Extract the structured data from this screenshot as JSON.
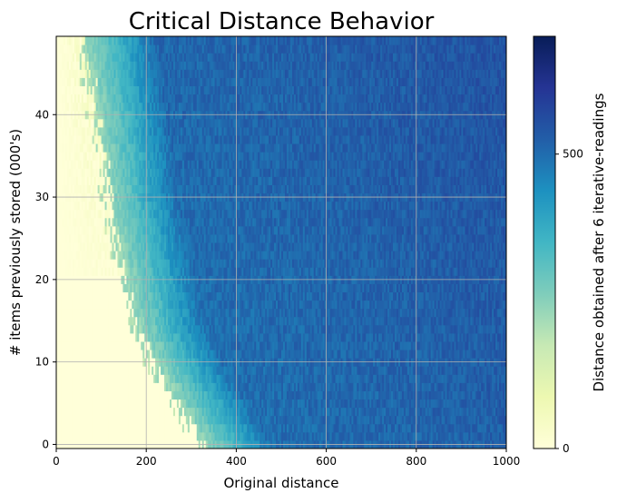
{
  "chart_data": {
    "type": "heatmap",
    "title": "Critical Distance Behavior",
    "xlabel": "Original distance",
    "ylabel": "# items previously stored (000's)",
    "xlim": [
      0,
      1000
    ],
    "ylim": [
      -0.5,
      49.5
    ],
    "x_ticks": [
      0,
      200,
      400,
      600,
      800,
      1000
    ],
    "y_ticks": [
      0,
      10,
      20,
      30,
      40
    ],
    "grid": true,
    "colormap": "YlGnBu",
    "colorbar": {
      "label": "Distance obtained after 6 iterative-readings",
      "range": [
        0,
        700
      ],
      "ticks": [
        0,
        500
      ]
    },
    "critical_boundary": {
      "y": [
        0,
        5,
        10,
        15,
        20,
        25,
        30,
        35,
        40,
        45,
        49
      ],
      "x": [
        320,
        265,
        210,
        170,
        150,
        130,
        110,
        100,
        85,
        70,
        60
      ]
    },
    "regions": {
      "below_boundary_value": 0,
      "far_value_range": [
        470,
        560
      ]
    }
  }
}
